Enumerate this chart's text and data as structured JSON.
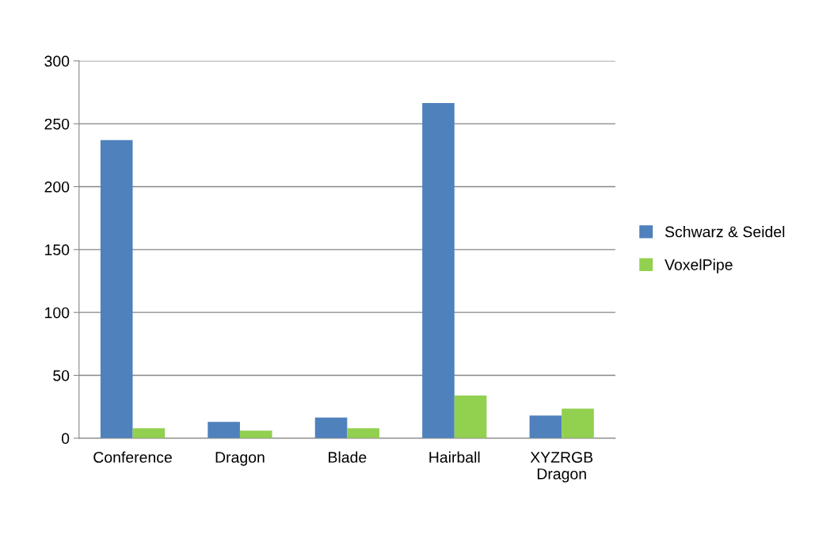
{
  "chart_data": {
    "type": "bar",
    "categories": [
      "Conference",
      "Dragon",
      "Blade",
      "Hairball",
      "XYZRGB Dragon"
    ],
    "series": [
      {
        "name": "Schwarz & Seidel",
        "color": "#4f81bd",
        "values": [
          237,
          13,
          16.5,
          266.5,
          18
        ]
      },
      {
        "name": "VoxelPipe",
        "color": "#92d050",
        "values": [
          8,
          6,
          8,
          34,
          23.5
        ]
      }
    ],
    "ylim": [
      0,
      300
    ],
    "yticks": [
      0,
      50,
      100,
      150,
      200,
      250,
      300
    ],
    "grid": "y",
    "legend": "right"
  }
}
